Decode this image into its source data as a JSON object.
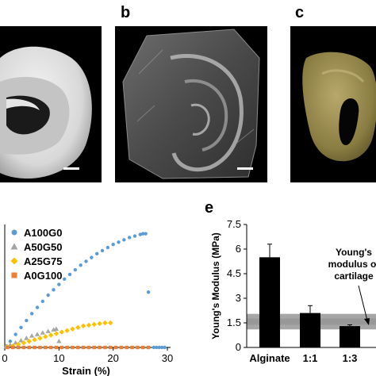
{
  "panels": {
    "a": {
      "letter": ""
    },
    "b": {
      "letter": "b"
    },
    "c": {
      "letter": "c"
    },
    "d": {
      "letter": ""
    },
    "e": {
      "letter": "e"
    }
  },
  "chart_data": [
    {
      "type": "scatter",
      "panel": "d",
      "xlabel": "Strain (%)",
      "ylabel": "",
      "xlim": [
        0,
        30
      ],
      "x_ticks": [
        0,
        10,
        20,
        30
      ],
      "legend_position": "top-left",
      "series": [
        {
          "name": "A100G0",
          "marker": "circle",
          "color": "#5b9bd5",
          "points": [
            [
              0.3,
              0.02
            ],
            [
              1,
              0.08
            ],
            [
              2,
              0.17
            ],
            [
              3,
              0.26
            ],
            [
              4,
              0.35
            ],
            [
              5,
              0.44
            ],
            [
              6,
              0.52
            ],
            [
              7,
              0.6
            ],
            [
              8,
              0.68
            ],
            [
              9,
              0.75
            ],
            [
              10,
              0.82
            ],
            [
              11,
              0.89
            ],
            [
              12,
              0.95
            ],
            [
              13,
              1.01
            ],
            [
              14,
              1.07
            ],
            [
              15,
              1.12
            ],
            [
              16,
              1.17
            ],
            [
              17,
              1.22
            ],
            [
              18,
              1.26
            ],
            [
              19,
              1.3
            ],
            [
              20,
              1.34
            ],
            [
              21,
              1.37
            ],
            [
              22,
              1.4
            ],
            [
              23,
              1.43
            ],
            [
              24,
              1.45
            ],
            [
              25,
              1.47
            ],
            [
              25.5,
              1.48
            ],
            [
              26,
              1.48
            ],
            [
              26.5,
              0.72
            ],
            [
              27.5,
              0.0
            ],
            [
              28,
              0.0
            ],
            [
              28.5,
              0.0
            ],
            [
              29,
              0.0
            ],
            [
              29.5,
              0.0
            ]
          ]
        },
        {
          "name": "A50G50",
          "marker": "triangle",
          "color": "#a5a5a5",
          "points": [
            [
              0.3,
              0.01
            ],
            [
              1,
              0.03
            ],
            [
              2,
              0.06
            ],
            [
              3,
              0.09
            ],
            [
              4,
              0.12
            ],
            [
              5,
              0.15
            ],
            [
              6,
              0.17
            ],
            [
              7,
              0.19
            ],
            [
              8,
              0.21
            ],
            [
              9,
              0.23
            ],
            [
              9.5,
              0.24
            ],
            [
              10,
              0.08
            ]
          ]
        },
        {
          "name": "A25G75",
          "marker": "diamond",
          "color": "#ffc000",
          "points": [
            [
              0.5,
              0.01
            ],
            [
              1.5,
              0.02
            ],
            [
              2.5,
              0.04
            ],
            [
              3.5,
              0.06
            ],
            [
              4.5,
              0.08
            ],
            [
              5.5,
              0.1
            ],
            [
              6.5,
              0.12
            ],
            [
              7.5,
              0.14
            ],
            [
              8.5,
              0.16
            ],
            [
              9.5,
              0.18
            ],
            [
              10.5,
              0.2
            ],
            [
              11.5,
              0.22
            ],
            [
              12.5,
              0.24
            ],
            [
              13.5,
              0.26
            ],
            [
              14.5,
              0.28
            ],
            [
              15.5,
              0.29
            ],
            [
              16.5,
              0.3
            ],
            [
              17.5,
              0.31
            ],
            [
              18.5,
              0.32
            ],
            [
              19.5,
              0.32
            ]
          ]
        },
        {
          "name": "A0G100",
          "marker": "square",
          "color": "#ed7d31",
          "points": [
            [
              0.5,
              0.0
            ],
            [
              1.5,
              0.0
            ],
            [
              2.5,
              0.0
            ],
            [
              3.5,
              0.0
            ],
            [
              4.5,
              0.0
            ],
            [
              5.5,
              0.0
            ],
            [
              6.5,
              0.0
            ],
            [
              7.5,
              0.0
            ],
            [
              8.5,
              0.0
            ],
            [
              9.5,
              0.0
            ],
            [
              10.5,
              0.0
            ],
            [
              11.5,
              0.0
            ],
            [
              12.5,
              0.0
            ],
            [
              13.5,
              0.0
            ],
            [
              14.5,
              0.0
            ],
            [
              15.5,
              0.0
            ],
            [
              16.5,
              0.0
            ],
            [
              17.5,
              0.0
            ],
            [
              18.5,
              0.0
            ],
            [
              19.5,
              0.0
            ],
            [
              20.5,
              0.0
            ],
            [
              21.5,
              0.0
            ],
            [
              22.5,
              0.0
            ],
            [
              23.5,
              0.0
            ],
            [
              24.5,
              0.0
            ],
            [
              25.5,
              0.0
            ],
            [
              26.5,
              0.0
            ]
          ]
        }
      ]
    },
    {
      "type": "bar",
      "panel": "e",
      "ylabel": "Young's Modulus (MPa)",
      "ylim": [
        0,
        7.5
      ],
      "y_ticks": [
        0,
        1.5,
        3,
        4.5,
        6,
        7.5
      ],
      "y_tick_labels": [
        "0",
        "1.5",
        "3",
        "4.5",
        "6",
        "7.5"
      ],
      "categories": [
        "Alginate",
        "1:1",
        "1:3"
      ],
      "values": [
        5.5,
        2.1,
        1.3
      ],
      "errors": [
        0.8,
        0.45,
        0.08
      ],
      "bar_color": "#000000",
      "cartilage_band": [
        1.1,
        2.05
      ],
      "cartilage_band_color": "#a6a6a6",
      "annotation": "Young's\nmodulus of\ncartilage"
    }
  ]
}
